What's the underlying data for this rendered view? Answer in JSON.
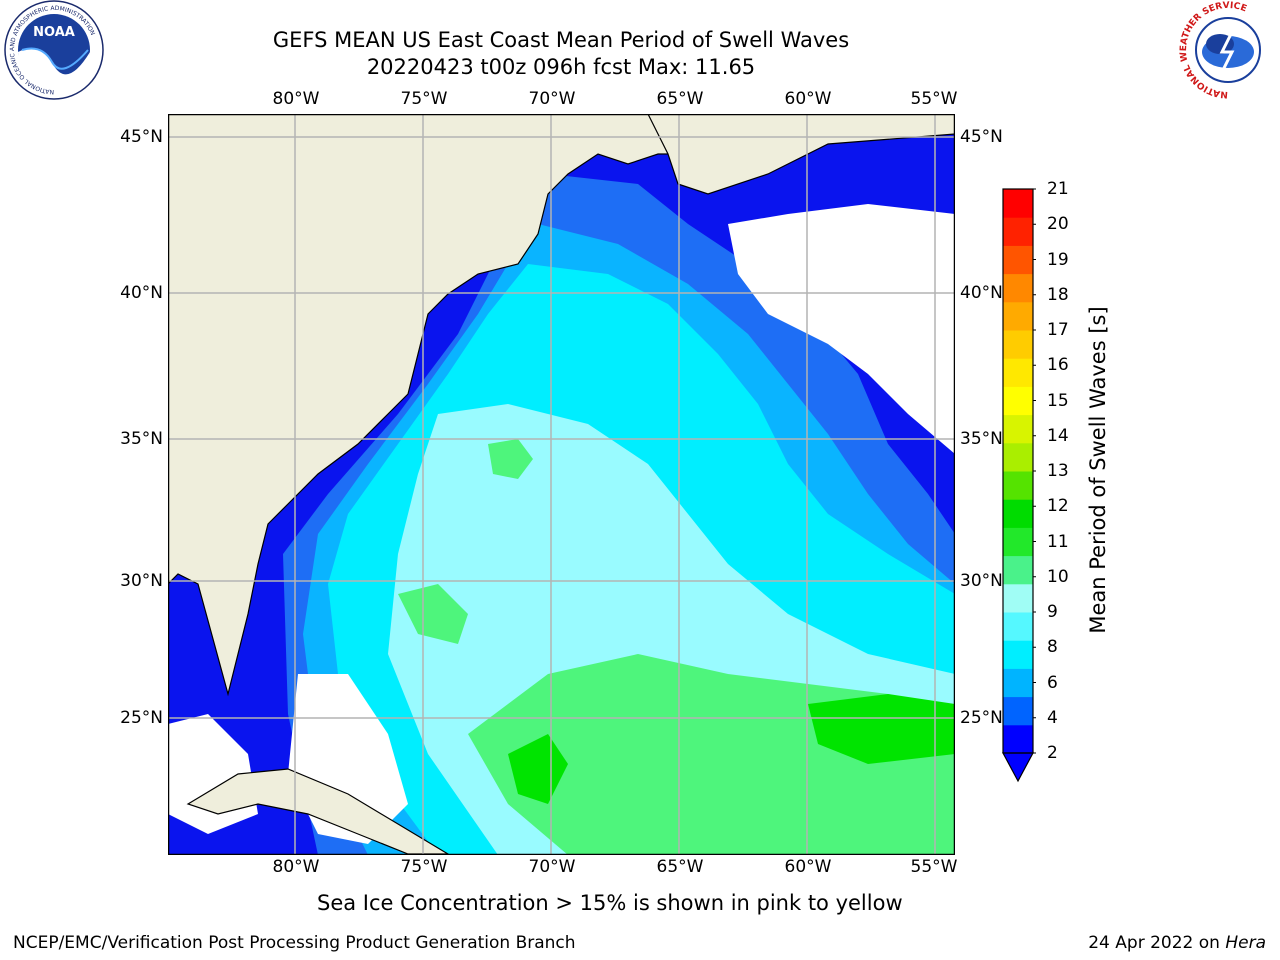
{
  "header": {
    "title_line1": "GEFS MEAN US East Coast Mean Period of Swell Waves",
    "title_line2": "20220423 t00z 096h fcst   Max: 11.65"
  },
  "map": {
    "lon_ticks": [
      "80°W",
      "75°W",
      "70°W",
      "65°W",
      "60°W",
      "55°W"
    ],
    "lat_ticks": [
      "45°N",
      "40°N",
      "35°N",
      "30°N",
      "25°N"
    ],
    "colors": {
      "land": "#efeedc",
      "ocean_blue": "#0a14ee",
      "mid_blue": "#1e6ef5",
      "light_blue": "#0ab4ff",
      "cyan": "#00eeff",
      "pale_cyan": "#99fbff",
      "green": "#4ef57c",
      "bright_green": "#00e400",
      "grid": "#b4b4b4"
    }
  },
  "colorbar": {
    "label": "Mean Period of Swell Waves [s]",
    "ticks": [
      "21",
      "20",
      "19",
      "18",
      "17",
      "16",
      "15",
      "14",
      "13",
      "12",
      "11",
      "10",
      "9",
      "8",
      "6",
      "4",
      "2"
    ],
    "colors": [
      "#0000ff",
      "#0064ff",
      "#00b4ff",
      "#00eeff",
      "#55f8ff",
      "#a0fdf5",
      "#4af28a",
      "#22e82a",
      "#00dc00",
      "#55e300",
      "#aaee00",
      "#d8f400",
      "#ffff00",
      "#ffe800",
      "#ffcc00",
      "#ffaa00",
      "#ff8800",
      "#ff5500",
      "#ff2200",
      "#ff0000"
    ]
  },
  "note": "Sea Ice Concentration > 15% is shown in pink to yellow",
  "footer": {
    "left": "NCEP/EMC/Verification Post Processing Product Generation Branch",
    "date": "24 Apr 2022 on ",
    "machine": "Hera"
  },
  "logos": {
    "noaa_text": "NOAA",
    "noaa_ring": "NATIONAL OCEANIC AND ATMOSPHERIC ADMINISTRATION",
    "noaa_ring2": "U.S. DEPARTMENT OF COMMERCE",
    "nws_ring": "NATIONAL WEATHER SERVICE"
  }
}
